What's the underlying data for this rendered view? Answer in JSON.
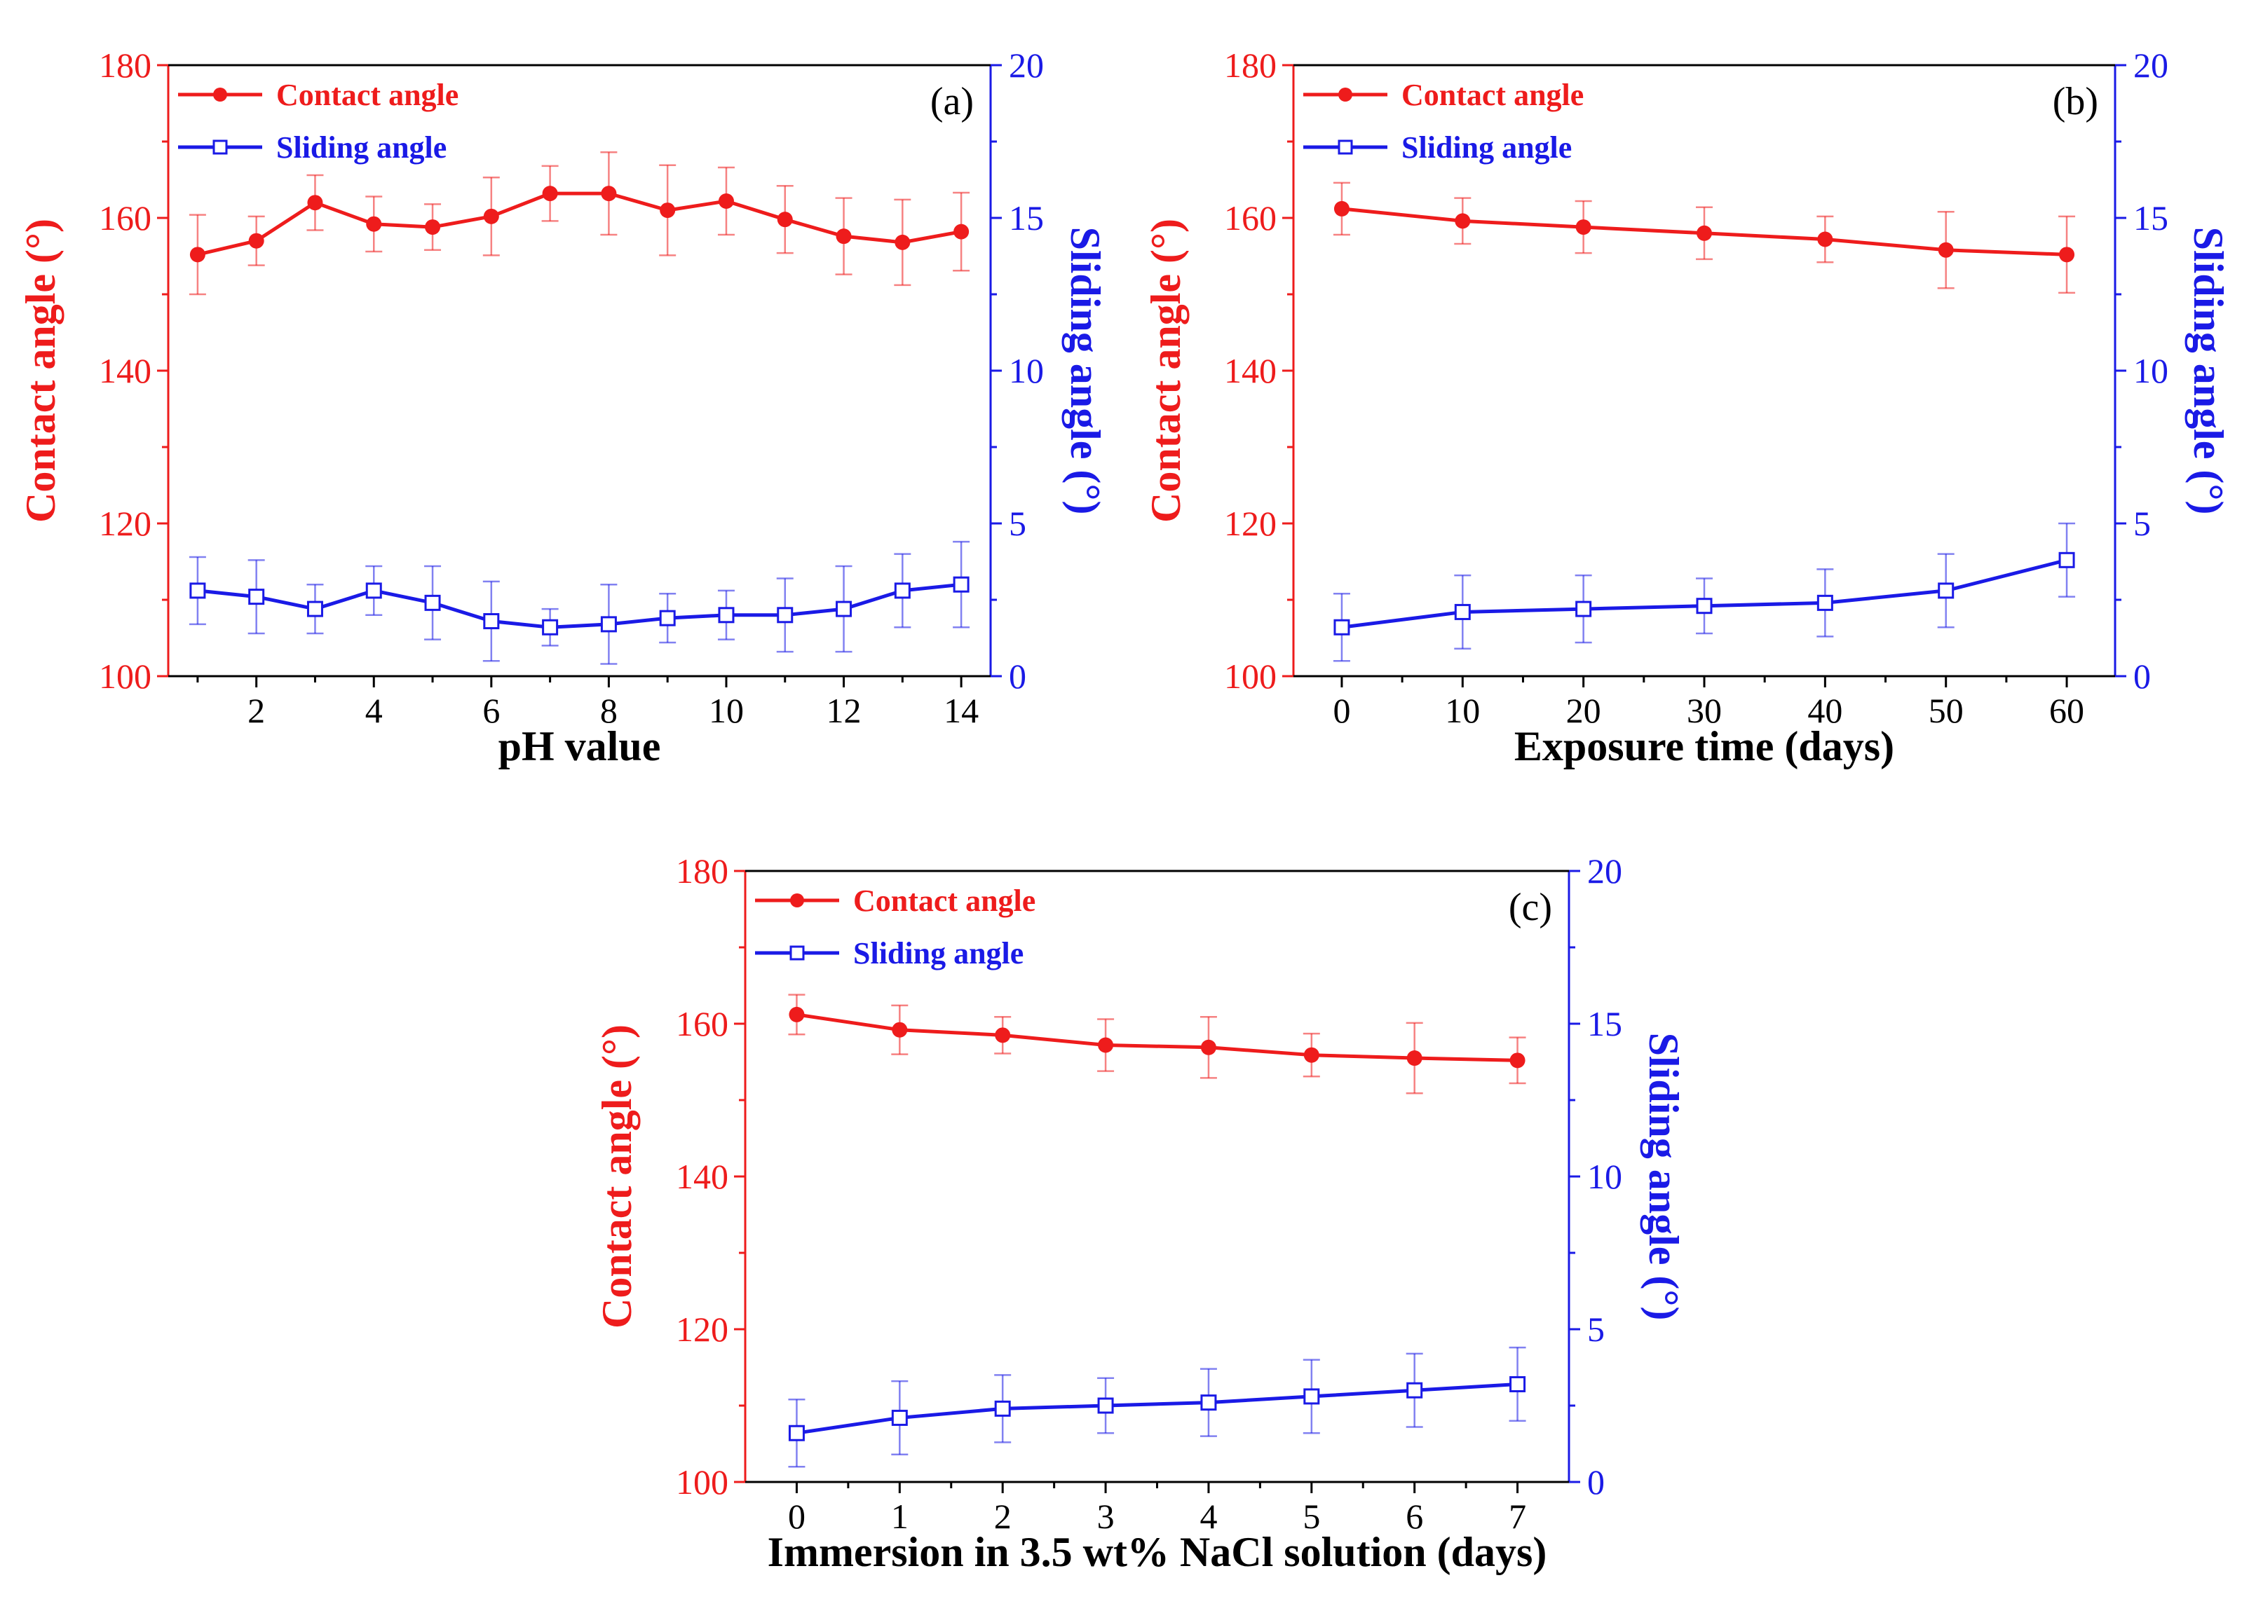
{
  "colors": {
    "contact": "#ee1c1c",
    "sliding": "#1a1ae6",
    "axis": "#000000"
  },
  "chart_data": [
    {
      "type": "line",
      "panel_label": "(a)",
      "xlabel": "pH value",
      "ylabel_left": "Contact angle (°)",
      "ylabel_right": "Sliding angle (°)",
      "xlim": [
        0.5,
        14.5
      ],
      "xticks": [
        2,
        4,
        6,
        8,
        10,
        12,
        14
      ],
      "xtick_labels": [
        "2",
        "4",
        "6",
        "8",
        "10",
        "12",
        "14"
      ],
      "ylim_left": [
        100,
        180
      ],
      "yticks_left": [
        "100",
        "120",
        "140",
        "160",
        "180"
      ],
      "ylim_right": [
        0,
        20
      ],
      "yticks_right": [
        "0",
        "5",
        "10",
        "15",
        "20"
      ],
      "legend": [
        "Contact angle",
        "Sliding angle"
      ],
      "x": [
        1,
        2,
        3,
        4,
        5,
        6,
        7,
        8,
        9,
        10,
        11,
        12,
        13,
        14
      ],
      "series": [
        {
          "name": "Contact angle",
          "axis": "left",
          "marker": "filled-circle",
          "values": [
            155.2,
            157.0,
            162.0,
            159.2,
            158.8,
            160.2,
            163.2,
            163.2,
            161.0,
            162.2,
            159.8,
            157.6,
            156.8,
            158.2
          ],
          "errors": [
            5.2,
            3.2,
            3.6,
            3.6,
            3.0,
            5.1,
            3.6,
            5.4,
            5.9,
            4.4,
            4.4,
            5.0,
            5.6,
            5.1
          ]
        },
        {
          "name": "Sliding angle",
          "axis": "right",
          "marker": "open-square",
          "values": [
            2.8,
            2.6,
            2.2,
            2.8,
            2.4,
            1.8,
            1.6,
            1.7,
            1.9,
            2.0,
            2.0,
            2.2,
            2.8,
            3.0
          ],
          "errors": [
            1.1,
            1.2,
            0.8,
            0.8,
            1.2,
            1.3,
            0.6,
            1.3,
            0.8,
            0.8,
            1.2,
            1.4,
            1.2,
            1.4
          ]
        }
      ]
    },
    {
      "type": "line",
      "panel_label": "(b)",
      "xlabel": "Exposure time (days)",
      "ylabel_left": "Contact angle (°)",
      "ylabel_right": "Sliding angle (°)",
      "xlim": [
        -4,
        64
      ],
      "xticks": [
        0,
        10,
        20,
        30,
        40,
        50,
        60
      ],
      "xtick_labels": [
        "0",
        "10",
        "20",
        "30",
        "40",
        "50",
        "60"
      ],
      "ylim_left": [
        100,
        180
      ],
      "yticks_left": [
        "100",
        "120",
        "140",
        "160",
        "180"
      ],
      "ylim_right": [
        0,
        20
      ],
      "yticks_right": [
        "0",
        "5",
        "10",
        "15",
        "20"
      ],
      "legend": [
        "Contact angle",
        "Sliding angle"
      ],
      "x": [
        0,
        10,
        20,
        30,
        40,
        50,
        60
      ],
      "series": [
        {
          "name": "Contact angle",
          "axis": "left",
          "marker": "filled-circle",
          "values": [
            161.2,
            159.6,
            158.8,
            158.0,
            157.2,
            155.8,
            155.2
          ],
          "errors": [
            3.4,
            3.0,
            3.4,
            3.4,
            3.0,
            5.0,
            5.0
          ]
        },
        {
          "name": "Sliding angle",
          "axis": "right",
          "marker": "open-square",
          "values": [
            1.6,
            2.1,
            2.2,
            2.3,
            2.4,
            2.8,
            3.8
          ],
          "errors": [
            1.1,
            1.2,
            1.1,
            0.9,
            1.1,
            1.2,
            1.2
          ]
        }
      ]
    },
    {
      "type": "line",
      "panel_label": "(c)",
      "xlabel": "Immersion in 3.5 wt% NaCl solution (days)",
      "ylabel_left": "Contact angle (°)",
      "ylabel_right": "Sliding angle (°)",
      "xlim": [
        -0.5,
        7.5
      ],
      "xticks": [
        0,
        1,
        2,
        3,
        4,
        5,
        6,
        7
      ],
      "xtick_labels": [
        "0",
        "1",
        "2",
        "3",
        "4",
        "5",
        "6",
        "7"
      ],
      "ylim_left": [
        100,
        180
      ],
      "yticks_left": [
        "100",
        "120",
        "140",
        "160",
        "180"
      ],
      "ylim_right": [
        0,
        20
      ],
      "yticks_right": [
        "0",
        "5",
        "10",
        "15",
        "20"
      ],
      "legend": [
        "Contact angle",
        "Sliding angle"
      ],
      "x": [
        0,
        1,
        2,
        3,
        4,
        5,
        6,
        7
      ],
      "series": [
        {
          "name": "Contact angle",
          "axis": "left",
          "marker": "filled-circle",
          "values": [
            161.2,
            159.2,
            158.5,
            157.2,
            156.9,
            155.9,
            155.5,
            155.2
          ],
          "errors": [
            2.6,
            3.2,
            2.4,
            3.4,
            4.0,
            2.8,
            4.6,
            3.0
          ]
        },
        {
          "name": "Sliding angle",
          "axis": "right",
          "marker": "open-square",
          "values": [
            1.6,
            2.1,
            2.4,
            2.5,
            2.6,
            2.8,
            3.0,
            3.2
          ],
          "errors": [
            1.1,
            1.2,
            1.1,
            0.9,
            1.1,
            1.2,
            1.2,
            1.2
          ]
        }
      ]
    }
  ]
}
